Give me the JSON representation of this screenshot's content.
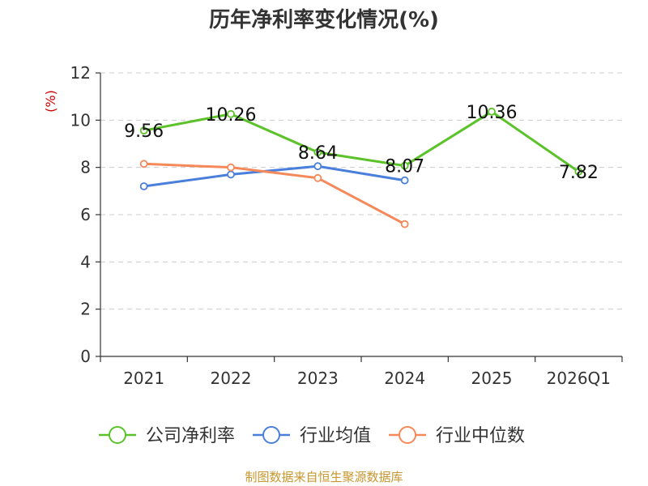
{
  "chart_data": {
    "type": "line",
    "title": "历年净利率变化情况(%)",
    "unit_label": "(%)",
    "categories": [
      "2021",
      "2022",
      "2023",
      "2024",
      "2025",
      "2026Q1"
    ],
    "ylim": [
      0,
      12
    ],
    "yticks": [
      "0",
      "2",
      "4",
      "6",
      "8",
      "10",
      "12"
    ],
    "grid": true,
    "legend_position": "bottom",
    "series": [
      {
        "name": "公司净利率",
        "color": "#5cc22a",
        "values": [
          9.56,
          10.26,
          8.64,
          8.07,
          10.36,
          7.82
        ],
        "labels": [
          "9.56",
          "10.26",
          "8.64",
          "8.07",
          "10.36",
          "7.82"
        ]
      },
      {
        "name": "行业均值",
        "color": "#4a7fdb",
        "values": [
          7.2,
          7.7,
          8.05,
          7.45,
          null,
          null
        ]
      },
      {
        "name": "行业中位数",
        "color": "#f5895a",
        "values": [
          8.15,
          8.0,
          7.55,
          5.6,
          null,
          null
        ]
      }
    ],
    "source": "制图数据来自恒生聚源数据库"
  }
}
